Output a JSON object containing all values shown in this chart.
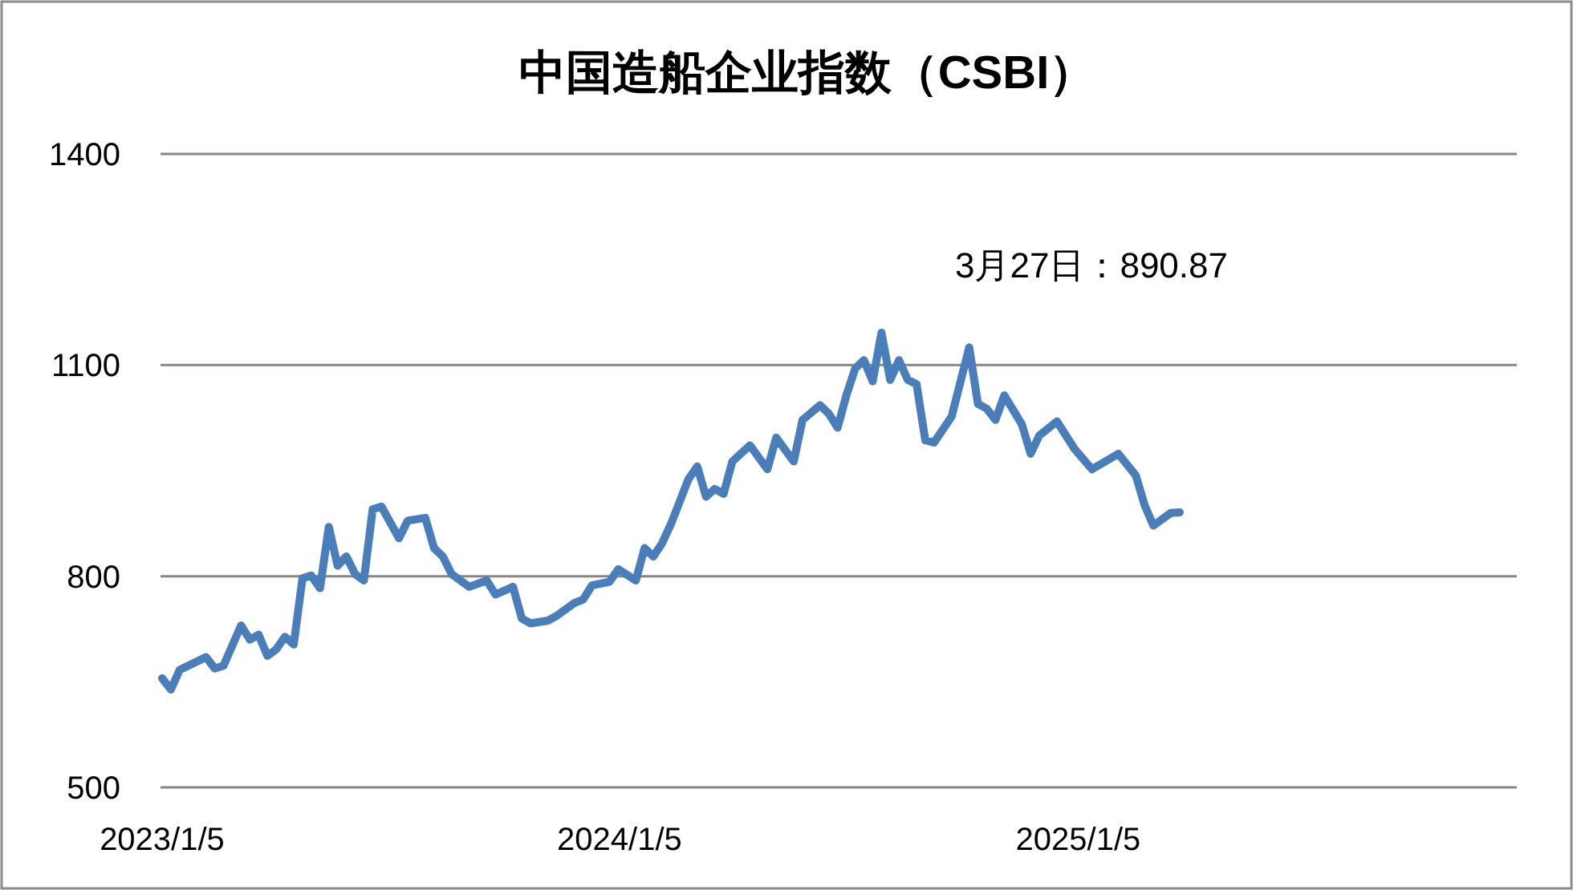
{
  "chart_data": {
    "type": "line",
    "title": "中国造船企业指数（CSBI）",
    "x": [
      "2023-01-05",
      "2023-01-12",
      "2023-01-19",
      "2023-02-09",
      "2023-02-16",
      "2023-02-23",
      "2023-03-09",
      "2023-03-16",
      "2023-03-23",
      "2023-03-30",
      "2023-04-06",
      "2023-04-13",
      "2023-04-20",
      "2023-04-27",
      "2023-05-04",
      "2023-05-11",
      "2023-05-18",
      "2023-05-25",
      "2023-06-01",
      "2023-06-08",
      "2023-06-15",
      "2023-06-22",
      "2023-06-29",
      "2023-07-13",
      "2023-07-20",
      "2023-08-03",
      "2023-08-10",
      "2023-08-17",
      "2023-08-24",
      "2023-09-07",
      "2023-09-21",
      "2023-09-28",
      "2023-10-12",
      "2023-10-19",
      "2023-10-26",
      "2023-11-09",
      "2023-11-16",
      "2023-11-30",
      "2023-12-07",
      "2023-12-14",
      "2023-12-28",
      "2024-01-04",
      "2024-01-18",
      "2024-01-25",
      "2024-02-01",
      "2024-02-08",
      "2024-02-15",
      "2024-02-29",
      "2024-03-07",
      "2024-03-14",
      "2024-03-21",
      "2024-03-28",
      "2024-04-04",
      "2024-04-18",
      "2024-05-02",
      "2024-05-09",
      "2024-05-23",
      "2024-05-30",
      "2024-06-13",
      "2024-06-20",
      "2024-06-27",
      "2024-07-04",
      "2024-07-11",
      "2024-07-18",
      "2024-07-25",
      "2024-08-01",
      "2024-08-08",
      "2024-08-15",
      "2024-08-22",
      "2024-08-29",
      "2024-09-05",
      "2024-09-12",
      "2024-09-26",
      "2024-10-10",
      "2024-10-17",
      "2024-10-24",
      "2024-10-31",
      "2024-11-07",
      "2024-11-21",
      "2024-11-28",
      "2024-12-05",
      "2024-12-19",
      "2025-01-02",
      "2025-01-16",
      "2025-02-06",
      "2025-02-20",
      "2025-02-27",
      "2025-03-06",
      "2025-03-20",
      "2025-03-27"
    ],
    "series": [
      {
        "color": "#4a7ebb",
        "values": [
          655,
          639,
          667,
          685,
          669,
          673,
          730,
          710,
          717,
          687,
          696,
          714,
          703,
          797,
          801,
          783,
          870,
          815,
          828,
          803,
          794,
          895,
          899,
          854,
          879,
          883,
          840,
          828,
          803,
          785,
          794,
          774,
          785,
          740,
          733,
          737,
          744,
          762,
          767,
          787,
          792,
          810,
          794,
          840,
          828,
          847,
          874,
          938,
          956,
          913,
          924,
          917,
          963,
          986,
          952,
          997,
          963,
          1022,
          1043,
          1031,
          1011,
          1057,
          1095,
          1107,
          1077,
          1146,
          1079,
          1107,
          1079,
          1073,
          993,
          990,
          1027,
          1125,
          1045,
          1038,
          1022,
          1057,
          1016,
          974,
          1000,
          1020,
          981,
          952,
          974,
          943,
          901,
          872,
          890,
          890.87
        ]
      }
    ],
    "xlim": [
      "2023-01-05",
      "2025-12-21"
    ],
    "xticks": [
      {
        "value": "2023-01-05",
        "label": "2023/1/5"
      },
      {
        "value": "2024-01-05",
        "label": "2024/1/5"
      },
      {
        "value": "2025-01-05",
        "label": "2025/1/5"
      }
    ],
    "ylim": [
      500,
      1400
    ],
    "yticks": [
      500,
      800,
      1100,
      1400
    ],
    "grid": "y",
    "marker": "none",
    "line_style": "solid",
    "annotations": [
      "3月27日：890.87"
    ]
  }
}
